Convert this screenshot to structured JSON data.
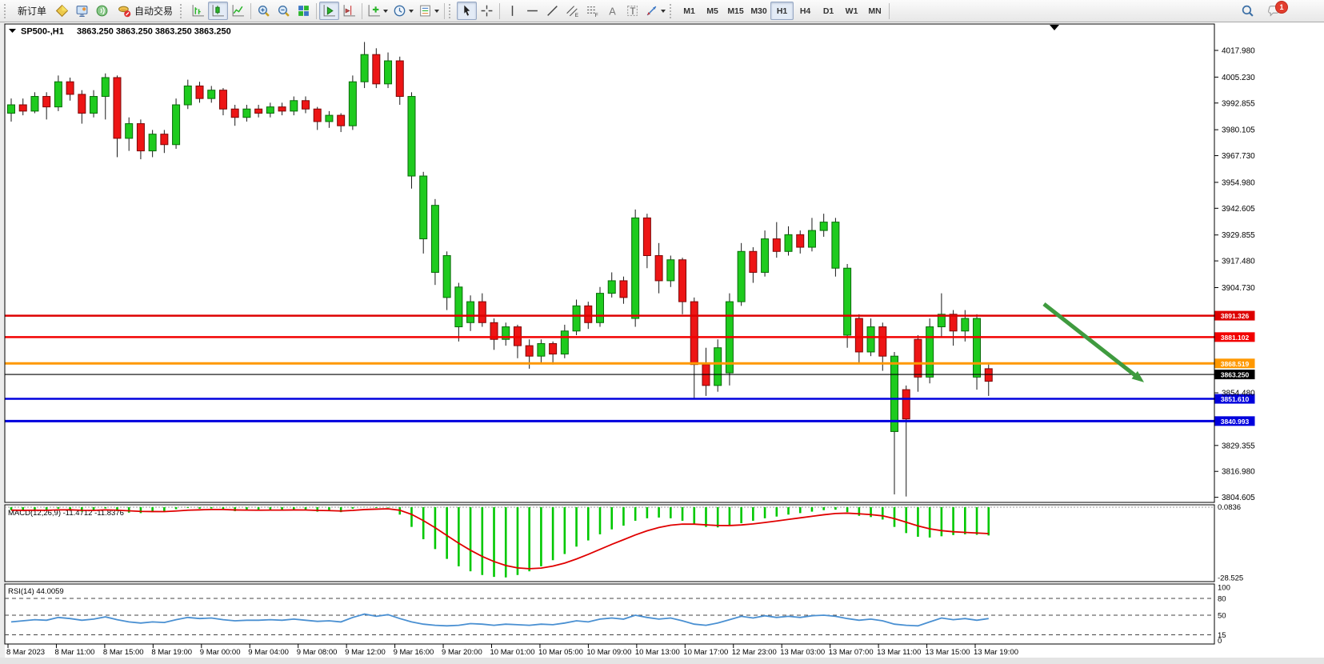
{
  "toolbar": {
    "new_order_label": "新订单",
    "autotrading_label": "自动交易",
    "timeframes": [
      "M1",
      "M5",
      "M15",
      "M30",
      "H1",
      "H4",
      "D1",
      "W1",
      "MN"
    ],
    "active_timeframe": "H1",
    "notification_count": "1",
    "glyphs": {
      "channel": "E",
      "fibo": "F",
      "text": "A",
      "label": "T"
    }
  },
  "chart": {
    "title_symbol": "SP500-,H1",
    "title_ohlc": "3863.250 3863.250 3863.250 3863.250",
    "macd_label": "MACD(12,26,9) -11.4712 -11.8376",
    "rsi_label": "RSI(14) 44.0059"
  },
  "chart_data": [
    {
      "type": "candlestick",
      "symbol": "SP500-",
      "period": "H1",
      "current_price": 3863.25,
      "y_axis_range": [
        3802,
        4031
      ],
      "colors": {
        "up": "#1ecb1e",
        "down": "#ed1515",
        "up_border": "#0a6a0a",
        "down_border": "#7d0707",
        "wick": "#1a1a1a"
      },
      "y_ticks": [
        "4017.980",
        "4005.230",
        "3992.855",
        "3980.105",
        "3967.730",
        "3954.980",
        "3942.605",
        "3929.855",
        "3917.480",
        "3904.730",
        "3854.480",
        "3829.355",
        "3816.980",
        "3804.605"
      ],
      "x_labels": [
        "8 Mar 2023",
        "8 Mar 11:00",
        "8 Mar 15:00",
        "8 Mar 19:00",
        "9 Mar 00:00",
        "9 Mar 04:00",
        "9 Mar 08:00",
        "9 Mar 12:00",
        "9 Mar 16:00",
        "9 Mar 20:00",
        "10 Mar 01:00",
        "10 Mar 05:00",
        "10 Mar 09:00",
        "10 Mar 13:00",
        "10 Mar 17:00",
        "12 Mar 23:00",
        "13 Mar 03:00",
        "13 Mar 07:00",
        "13 Mar 11:00",
        "13 Mar 15:00",
        "13 Mar 19:00"
      ],
      "hlines": [
        {
          "price": 3891.326,
          "label": "3891.326",
          "color": "#dd0000",
          "width": 2.5
        },
        {
          "price": 3881.102,
          "label": "3881.102",
          "color": "#f20000",
          "width": 2.5
        },
        {
          "price": 3868.519,
          "label": "3868.519",
          "color": "#ff9800",
          "width": 3
        },
        {
          "price": 3863.25,
          "label": "3863.250",
          "color": "#000000",
          "width": 1.2
        },
        {
          "price": 3851.61,
          "label": "3851.610",
          "color": "#0000dd",
          "width": 2.5
        },
        {
          "price": 3840.993,
          "label": "3840.993",
          "color": "#0000dd",
          "width": 3
        }
      ],
      "arrow": {
        "from_bar": 87.7,
        "from_price": 3896.9,
        "to_bar": 96.2,
        "to_price": 3859.5,
        "color": "#3f9b3f"
      },
      "candles": [
        [
          3988,
          3995,
          3984,
          3992,
          "u"
        ],
        [
          3992,
          3995,
          3987,
          3989,
          "d"
        ],
        [
          3989,
          3998,
          3988,
          3996,
          "u"
        ],
        [
          3996,
          3998,
          3985,
          3991,
          "d"
        ],
        [
          3991,
          4006,
          3989,
          4003,
          "u"
        ],
        [
          4003,
          4005,
          3994,
          3997,
          "d"
        ],
        [
          3997,
          3999,
          3983,
          3988,
          "d"
        ],
        [
          3988,
          3999,
          3986,
          3996,
          "u"
        ],
        [
          3996,
          4007,
          3985,
          4005,
          "u"
        ],
        [
          4005,
          4006,
          3967,
          3976,
          "d"
        ],
        [
          3976,
          3986,
          3970,
          3983,
          "u"
        ],
        [
          3983,
          3985,
          3966,
          3970,
          "d"
        ],
        [
          3970,
          3980,
          3967,
          3978,
          "u"
        ],
        [
          3978,
          3980,
          3969,
          3973,
          "d"
        ],
        [
          3973,
          3995,
          3971,
          3992,
          "u"
        ],
        [
          3992,
          4004,
          3990,
          4001,
          "u"
        ],
        [
          4001,
          4003,
          3993,
          3995,
          "d"
        ],
        [
          3995,
          4001,
          3993,
          3999,
          "u"
        ],
        [
          3999,
          4000,
          3987,
          3990,
          "d"
        ],
        [
          3990,
          3992,
          3982,
          3986,
          "d"
        ],
        [
          3986,
          3992,
          3984,
          3990,
          "u"
        ],
        [
          3990,
          3992,
          3986,
          3988,
          "d"
        ],
        [
          3988,
          3993,
          3986,
          3991,
          "u"
        ],
        [
          3991,
          3993,
          3987,
          3989,
          "d"
        ],
        [
          3989,
          3996,
          3987,
          3994,
          "u"
        ],
        [
          3994,
          3996,
          3988,
          3990,
          "d"
        ],
        [
          3990,
          3991,
          3980,
          3984,
          "d"
        ],
        [
          3984,
          3989,
          3981,
          3987,
          "u"
        ],
        [
          3987,
          3988,
          3979,
          3982,
          "d"
        ],
        [
          3982,
          4006,
          3980,
          4003,
          "u"
        ],
        [
          4003,
          4022,
          4000,
          4016,
          "u"
        ],
        [
          4016,
          4019,
          4000,
          4002,
          "d"
        ],
        [
          4002,
          4017,
          4000,
          4013,
          "u"
        ],
        [
          4013,
          4015,
          3992,
          3996,
          "d"
        ],
        [
          3996,
          3998,
          3952,
          3958,
          "u"
        ],
        [
          3958,
          3960,
          3921,
          3928,
          "u"
        ],
        [
          3944,
          3947,
          3906,
          3912,
          "u"
        ],
        [
          3920,
          3922,
          3894,
          3900,
          "u"
        ],
        [
          3905,
          3907,
          3879,
          3886,
          "u"
        ],
        [
          3888,
          3901,
          3884,
          3898,
          "u"
        ],
        [
          3898,
          3902,
          3886,
          3888,
          "d"
        ],
        [
          3888,
          3890,
          3875,
          3880,
          "d"
        ],
        [
          3880,
          3888,
          3877,
          3886,
          "u"
        ],
        [
          3886,
          3887,
          3871,
          3877,
          "d"
        ],
        [
          3877,
          3880,
          3866,
          3872,
          "d"
        ],
        [
          3872,
          3880,
          3869,
          3878,
          "u"
        ],
        [
          3878,
          3879,
          3868,
          3873,
          "d"
        ],
        [
          3873,
          3887,
          3871,
          3884,
          "u"
        ],
        [
          3884,
          3899,
          3882,
          3896,
          "u"
        ],
        [
          3896,
          3898,
          3885,
          3888,
          "d"
        ],
        [
          3888,
          3905,
          3886,
          3902,
          "u"
        ],
        [
          3902,
          3912,
          3900,
          3908,
          "u"
        ],
        [
          3908,
          3910,
          3897,
          3900,
          "d"
        ],
        [
          3890,
          3942,
          3886,
          3938,
          "u"
        ],
        [
          3938,
          3940,
          3914,
          3920,
          "d"
        ],
        [
          3920,
          3926,
          3902,
          3908,
          "d"
        ],
        [
          3908,
          3920,
          3905,
          3918,
          "u"
        ],
        [
          3918,
          3919,
          3892,
          3898,
          "d"
        ],
        [
          3898,
          3900,
          3852,
          3868,
          "d"
        ],
        [
          3868,
          3876,
          3853,
          3858,
          "d"
        ],
        [
          3858,
          3880,
          3855,
          3876,
          "u"
        ],
        [
          3864,
          3902,
          3858,
          3898,
          "u"
        ],
        [
          3898,
          3926,
          3896,
          3922,
          "u"
        ],
        [
          3922,
          3924,
          3907,
          3912,
          "d"
        ],
        [
          3912,
          3932,
          3910,
          3928,
          "u"
        ],
        [
          3928,
          3936,
          3919,
          3922,
          "d"
        ],
        [
          3922,
          3934,
          3920,
          3930,
          "u"
        ],
        [
          3930,
          3932,
          3921,
          3924,
          "d"
        ],
        [
          3924,
          3938,
          3922,
          3932,
          "u"
        ],
        [
          3932,
          3940,
          3929,
          3936,
          "u"
        ],
        [
          3936,
          3938,
          3910,
          3914,
          "u"
        ],
        [
          3914,
          3916,
          3876,
          3882,
          "u"
        ],
        [
          3890,
          3892,
          3869,
          3874,
          "d"
        ],
        [
          3874,
          3890,
          3872,
          3886,
          "u"
        ],
        [
          3886,
          3888,
          3865,
          3872,
          "d"
        ],
        [
          3872,
          3874,
          3806,
          3836,
          "u"
        ],
        [
          3856,
          3858,
          3805,
          3842,
          "d"
        ],
        [
          3880,
          3882,
          3855,
          3862,
          "d"
        ],
        [
          3862,
          3890,
          3859,
          3886,
          "u"
        ],
        [
          3886,
          3902,
          3881,
          3892,
          "u"
        ],
        [
          3892,
          3894,
          3877,
          3884,
          "d"
        ],
        [
          3884,
          3894,
          3879,
          3890,
          "u"
        ],
        [
          3890,
          3892,
          3856,
          3862,
          "u"
        ],
        [
          3866,
          3868,
          3853,
          3860,
          "d"
        ]
      ]
    },
    {
      "type": "bar",
      "name": "MACD(12,26,9)",
      "value_main": -11.4712,
      "value_signal": -11.8376,
      "color": "#00c800",
      "signal_color": "#e00000",
      "scale_labels": [
        {
          "text": "0.0836",
          "v": 0.0836
        },
        {
          "text": "-28.525",
          "v": -28.525
        }
      ],
      "values": [
        -1.2,
        -1.5,
        -1.0,
        -1.4,
        -0.6,
        -1.0,
        -1.8,
        -1.4,
        -0.5,
        -1.6,
        -2.2,
        -2.4,
        -2.0,
        -1.8,
        -0.8,
        -0.3,
        -0.6,
        -0.5,
        -1.0,
        -1.6,
        -1.4,
        -1.3,
        -1.1,
        -1.2,
        -0.9,
        -1.2,
        -1.8,
        -1.6,
        -2.0,
        -0.6,
        0.08,
        -0.3,
        -0.2,
        -3.0,
        -8.0,
        -13.0,
        -17.0,
        -21.0,
        -24.0,
        -26.0,
        -27.5,
        -28.3,
        -28.5,
        -27.5,
        -26.0,
        -24.0,
        -21.5,
        -19.0,
        -16.0,
        -13.5,
        -11.0,
        -9.0,
        -7.5,
        -5.5,
        -4.5,
        -4.2,
        -4.5,
        -5.5,
        -7.0,
        -8.0,
        -8.2,
        -7.5,
        -6.5,
        -5.5,
        -4.5,
        -3.8,
        -3.0,
        -2.4,
        -1.8,
        -1.2,
        -1.0,
        -2.0,
        -3.5,
        -4.0,
        -5.0,
        -8.0,
        -10.5,
        -12.0,
        -12.3,
        -11.8,
        -11.3,
        -11.0,
        -11.2,
        -11.4712
      ]
    },
    {
      "type": "line",
      "name": "RSI(14)",
      "value": 44.0059,
      "color": "#4a90d2",
      "levels": [
        80,
        50,
        15
      ],
      "scale_labels": [
        {
          "text": "100",
          "v": 100
        },
        {
          "text": "80",
          "v": 80
        },
        {
          "text": "50",
          "v": 50
        },
        {
          "text": "15",
          "v": 15
        },
        {
          "text": "0",
          "v": 0
        }
      ],
      "values": [
        38,
        40,
        42,
        41,
        46,
        44,
        41,
        43,
        47,
        42,
        38,
        36,
        38,
        37,
        42,
        46,
        44,
        45,
        42,
        40,
        41,
        41,
        42,
        41,
        43,
        41,
        39,
        40,
        38,
        46,
        52,
        48,
        51,
        44,
        38,
        34,
        32,
        31,
        32,
        35,
        34,
        32,
        34,
        33,
        32,
        34,
        33,
        36,
        40,
        38,
        43,
        45,
        43,
        50,
        46,
        43,
        45,
        40,
        34,
        32,
        36,
        42,
        48,
        45,
        49,
        46,
        48,
        46,
        49,
        50,
        48,
        44,
        41,
        43,
        40,
        34,
        32,
        31,
        38,
        45,
        42,
        44,
        41,
        44.0059
      ]
    }
  ]
}
